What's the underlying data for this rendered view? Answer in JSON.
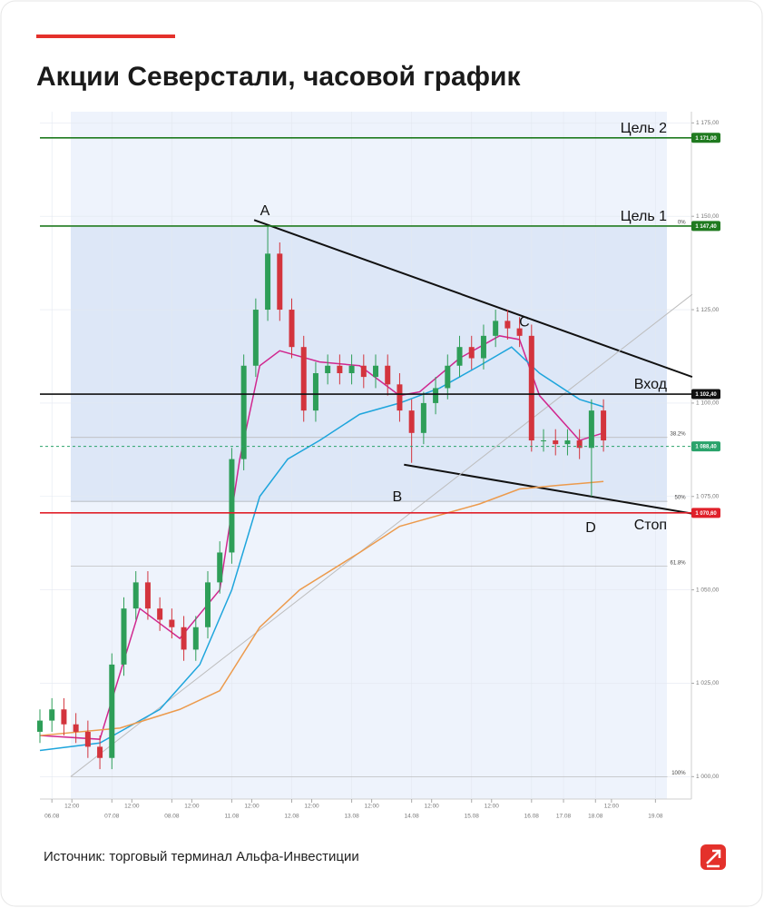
{
  "chart_data": {
    "type": "candlestick",
    "title": "Акции Северстали, часовой график",
    "source": "Источник: торговый терминал Альфа-Инвестиции",
    "up_color": "#2e9e58",
    "down_color": "#d3343d",
    "x": [
      0,
      3,
      6,
      9,
      12,
      15,
      18,
      21,
      24,
      27,
      30,
      33,
      36,
      39,
      42,
      45,
      48,
      51,
      54,
      57,
      60,
      63,
      66,
      69,
      72,
      75,
      78,
      81,
      84,
      87,
      90,
      93,
      96,
      99,
      102,
      105,
      108,
      111,
      114,
      117,
      120,
      123,
      126,
      129,
      132,
      135,
      138,
      141
    ],
    "open": [
      1012,
      1015,
      1018,
      1014,
      1012,
      1008,
      1005,
      1030,
      1045,
      1052,
      1045,
      1042,
      1040,
      1034,
      1040,
      1052,
      1060,
      1085,
      1110,
      1125,
      1140,
      1125,
      1115,
      1098,
      1108,
      1110,
      1108,
      1110,
      1107,
      1110,
      1105,
      1098,
      1092,
      1100,
      1104,
      1110,
      1115,
      1112,
      1118,
      1122,
      1120,
      1118,
      1090,
      1090,
      1089,
      1090,
      1088,
      1098
    ],
    "high": [
      1018,
      1021,
      1021,
      1017,
      1015,
      1011,
      1033,
      1048,
      1055,
      1055,
      1048,
      1045,
      1043,
      1043,
      1055,
      1063,
      1088,
      1113,
      1128,
      1147.4,
      1143,
      1128,
      1118,
      1111,
      1113,
      1113,
      1113,
      1113,
      1113,
      1113,
      1108,
      1101,
      1103,
      1107,
      1113,
      1118,
      1118,
      1121,
      1125,
      1125,
      1123,
      1121,
      1093,
      1093,
      1093,
      1093,
      1101,
      1101
    ],
    "low": [
      1009,
      1012,
      1011,
      1009,
      1005,
      1002,
      1002,
      1027,
      1042,
      1042,
      1039,
      1037,
      1031,
      1031,
      1037,
      1049,
      1057,
      1082,
      1107,
      1122,
      1122,
      1112,
      1095,
      1095,
      1105,
      1105,
      1105,
      1104,
      1104,
      1102,
      1095,
      1084,
      1089,
      1097,
      1101,
      1107,
      1109,
      1109,
      1115,
      1117,
      1115,
      1087,
      1087,
      1086,
      1086,
      1085,
      1075,
      1087
    ],
    "close": [
      1015,
      1018,
      1014,
      1012,
      1008,
      1005,
      1030,
      1045,
      1052,
      1045,
      1042,
      1040,
      1034,
      1040,
      1052,
      1060,
      1085,
      1110,
      1125,
      1140,
      1125,
      1115,
      1098,
      1108,
      1110,
      1108,
      1110,
      1107,
      1110,
      1105,
      1098,
      1092,
      1100,
      1104,
      1110,
      1115,
      1112,
      1118,
      1122,
      1120,
      1118,
      1090,
      1090,
      1089,
      1090,
      1088,
      1098,
      1090
    ],
    "series": [
      {
        "color": "#d0278f",
        "x": [
          0,
          15,
          25,
          35,
          45,
          50,
          55,
          60,
          70,
          80,
          90,
          95,
          105,
          115,
          120,
          125,
          135,
          141
        ],
        "values": [
          1011,
          1010,
          1045,
          1037,
          1050,
          1085,
          1110,
          1114,
          1111,
          1110,
          1102,
          1103,
          1112,
          1118,
          1117,
          1102,
          1090,
          1092
        ]
      },
      {
        "color": "#1ea5dc",
        "x": [
          0,
          15,
          30,
          40,
          48,
          55,
          62,
          70,
          80,
          90,
          100,
          110,
          118,
          125,
          135,
          141
        ],
        "values": [
          1007,
          1009,
          1018,
          1030,
          1050,
          1075,
          1085,
          1090,
          1097,
          1100,
          1104,
          1110,
          1115,
          1108,
          1101,
          1099
        ]
      },
      {
        "color": "#ec9a4c",
        "x": [
          0,
          20,
          35,
          45,
          55,
          65,
          80,
          90,
          100,
          110,
          120,
          130,
          141
        ],
        "values": [
          1011,
          1013,
          1018,
          1023,
          1040,
          1050,
          1060,
          1067,
          1070,
          1073,
          1077,
          1078,
          1079
        ]
      }
    ],
    "xlim": [
      0,
      163
    ],
    "ylim": [
      994,
      1178
    ],
    "xticks": [
      {
        "value": 3,
        "label": "06.08"
      },
      {
        "value": 18,
        "label": "07.08"
      },
      {
        "value": 33,
        "label": "08.08"
      },
      {
        "value": 48,
        "label": "11.08"
      },
      {
        "value": 63,
        "label": "12.08"
      },
      {
        "value": 78,
        "label": "13.08"
      },
      {
        "value": 93,
        "label": "14.08"
      },
      {
        "value": 108,
        "label": "15.08"
      },
      {
        "value": 123,
        "label": "16.08"
      },
      {
        "value": 131,
        "label": "17.08"
      },
      {
        "value": 139,
        "label": "18.08"
      },
      {
        "value": 154,
        "label": "19.08"
      }
    ],
    "xticks_minor": [
      {
        "value": 8,
        "label": "12:00"
      },
      {
        "value": 23,
        "label": "12:00"
      },
      {
        "value": 38,
        "label": "12:00"
      },
      {
        "value": 53,
        "label": "12:00"
      },
      {
        "value": 68,
        "label": "12:00"
      },
      {
        "value": 83,
        "label": "12:00"
      },
      {
        "value": 98,
        "label": "12:00"
      },
      {
        "value": 113,
        "label": "12:00"
      },
      {
        "value": 143,
        "label": "12:00"
      }
    ],
    "yticks": [
      {
        "value": 1000,
        "label": "1 000,00"
      },
      {
        "value": 1025,
        "label": "1 025,00"
      },
      {
        "value": 1050,
        "label": "1 050,00"
      },
      {
        "value": 1075,
        "label": "1 075,00"
      },
      {
        "value": 1100,
        "label": "1 100,00"
      },
      {
        "value": 1125,
        "label": "1 125,00"
      },
      {
        "value": 1150,
        "label": "1 150,00"
      },
      {
        "value": 1175,
        "label": "1 175,00"
      }
    ],
    "grid": true,
    "levels": [
      {
        "name": "Цель 2",
        "value": 1171,
        "label": "1 171,00",
        "color": "#1f7a1f"
      },
      {
        "name": "Цель 1",
        "value": 1147.4,
        "label": "1 147,40",
        "color": "#1f7a1f"
      },
      {
        "name": "Вход",
        "value": 1102.4,
        "label": "1 102,40",
        "color": "#111111"
      },
      {
        "name": "Стоп",
        "value": 1070.6,
        "label": "1 070,60",
        "color": "#e0202a",
        "side": "below"
      },
      {
        "value": 1088.4,
        "label": "1 088,40",
        "color": "#2aa36b",
        "dashed": true
      }
    ],
    "fib": {
      "x_range": [
        7.7,
        157
      ],
      "levels": [
        {
          "ratio_label": "0%",
          "price": 1147.4
        },
        {
          "ratio_label": "38.2%",
          "price": 1090.8
        },
        {
          "ratio_label": "50%",
          "price": 1073.7
        },
        {
          "ratio_label": "61.8%",
          "price": 1056.3
        },
        {
          "ratio_label": "100%",
          "price": 1000
        }
      ]
    },
    "lines": [
      {
        "color": "#111111",
        "width": 2,
        "x": [
          53.6,
          163.2
        ],
        "values": [
          1149,
          1107
        ]
      },
      {
        "color": "#111111",
        "width": 2,
        "x": [
          91.1,
          163.2
        ],
        "values": [
          1083.5,
          1070.4
        ]
      },
      {
        "color": "#bdbdbd",
        "width": 1,
        "x": [
          7.7,
          163.2
        ],
        "values": [
          1000,
          1129.1
        ]
      }
    ],
    "annotations": [
      {
        "text": "A",
        "x": 56.3,
        "y": 1151.3
      },
      {
        "text": "B",
        "x": 89.4,
        "y": 1074.7
      },
      {
        "text": "C",
        "x": 121.2,
        "y": 1121.6
      },
      {
        "text": "D",
        "x": 137.8,
        "y": 1066.5
      }
    ]
  }
}
